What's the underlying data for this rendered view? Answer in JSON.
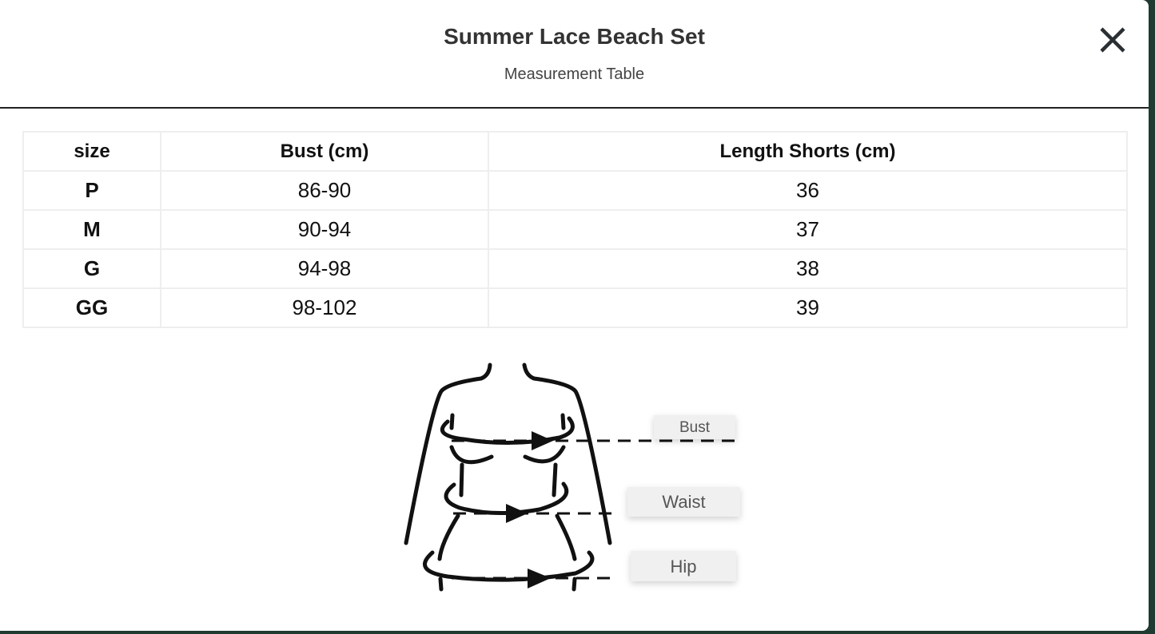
{
  "modal": {
    "title": "Summer Lace Beach Set",
    "subtitle": "Measurement Table",
    "close_icon": "close-icon"
  },
  "table": {
    "headers": [
      "size",
      "Bust (cm)",
      "Length Shorts (cm)"
    ],
    "rows": [
      [
        "P",
        "86-90",
        "36"
      ],
      [
        "M",
        "90-94",
        "37"
      ],
      [
        "G",
        "94-98",
        "38"
      ],
      [
        "GG",
        "98-102",
        "39"
      ]
    ]
  },
  "diagram": {
    "labels": {
      "bust": "Bust",
      "waist": "Waist",
      "hip": "Hip"
    }
  }
}
